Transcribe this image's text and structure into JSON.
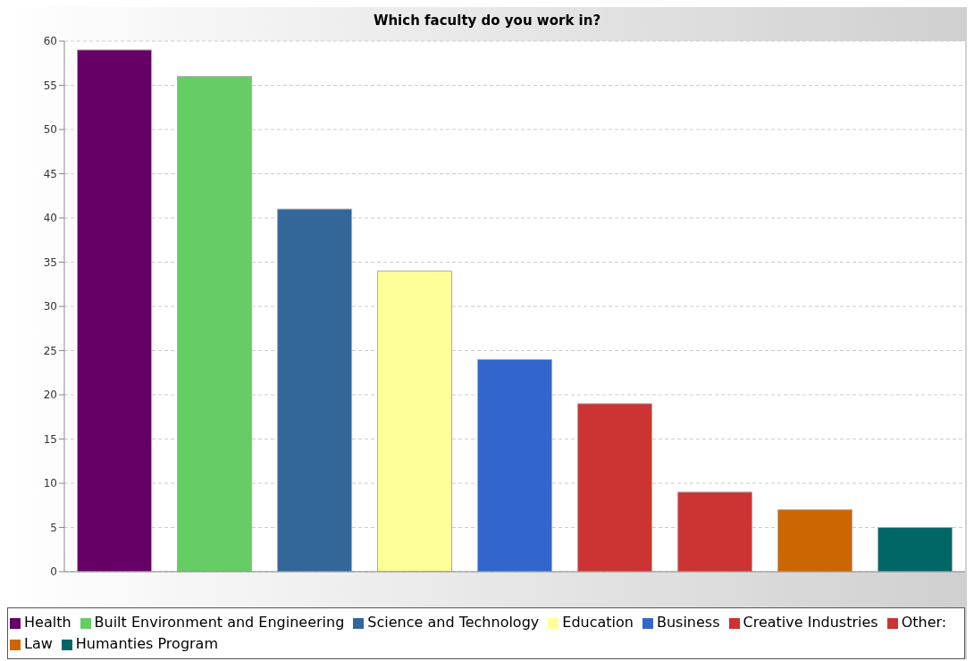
{
  "chart_data": {
    "type": "bar",
    "title": "Which faculty do you work in?",
    "categories": [
      null,
      null,
      null,
      null,
      null,
      null,
      null,
      null,
      null
    ],
    "stacked": true,
    "series": [
      {
        "name": "Health",
        "color": "#660066",
        "values": [
          59,
          null,
          null,
          null,
          null,
          null,
          null,
          null,
          null
        ]
      },
      {
        "name": "Built Environment and Engineering",
        "color": "#66cc66",
        "values": [
          null,
          56,
          null,
          null,
          null,
          null,
          null,
          null,
          null
        ]
      },
      {
        "name": "Science and Technology",
        "color": "#336699",
        "values": [
          null,
          null,
          41,
          null,
          null,
          null,
          null,
          null,
          null
        ]
      },
      {
        "name": "Education",
        "color": "#ffff99",
        "values": [
          null,
          null,
          null,
          34,
          null,
          null,
          null,
          null,
          null
        ]
      },
      {
        "name": "Business",
        "color": "#3366cc",
        "values": [
          null,
          null,
          null,
          null,
          24,
          null,
          null,
          null,
          null
        ]
      },
      {
        "name": "Creative Industries",
        "color": "#cc3333",
        "values": [
          null,
          null,
          null,
          null,
          null,
          19,
          null,
          null,
          null
        ]
      },
      {
        "name": "Other:",
        "color": "#cc3333",
        "values": [
          null,
          null,
          null,
          null,
          null,
          null,
          9,
          null,
          null
        ]
      },
      {
        "name": "Law",
        "color": "#cc6600",
        "values": [
          null,
          null,
          null,
          null,
          null,
          null,
          null,
          7,
          null
        ]
      },
      {
        "name": "Humanties Program",
        "color": "#006666",
        "values": [
          null,
          null,
          null,
          null,
          null,
          null,
          null,
          null,
          5
        ]
      }
    ],
    "ylim": [
      0,
      60
    ],
    "yticks": [
      0,
      5,
      10,
      15,
      20,
      25,
      30,
      35,
      40,
      45,
      50,
      55,
      60
    ],
    "grid": "y",
    "legend": "bottom",
    "tick_labels": "y"
  }
}
